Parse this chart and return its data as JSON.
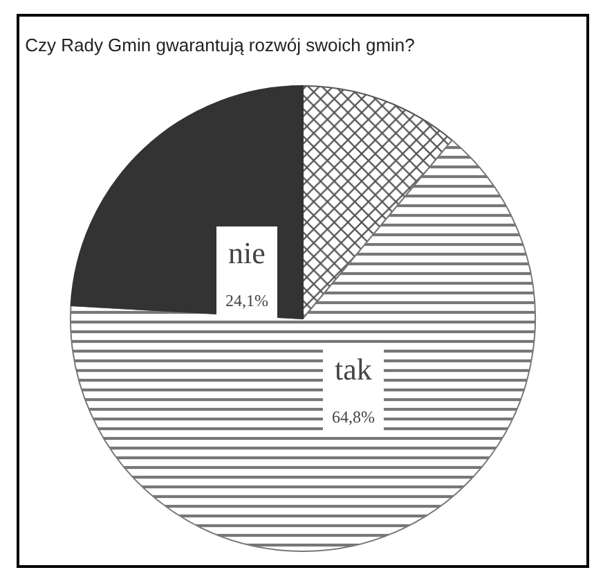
{
  "chart_data": {
    "type": "pie",
    "title": "Czy Rady Gmin gwarantują rozwój swoich gmin?",
    "categories": [
      null,
      "tak",
      "nie"
    ],
    "values": [
      11.1,
      64.8,
      24.1
    ],
    "colors": [
      "#555555",
      "#777777",
      "#333333"
    ],
    "value_labels": [
      null,
      "64,8%",
      "24,1%"
    ],
    "legend": false
  }
}
